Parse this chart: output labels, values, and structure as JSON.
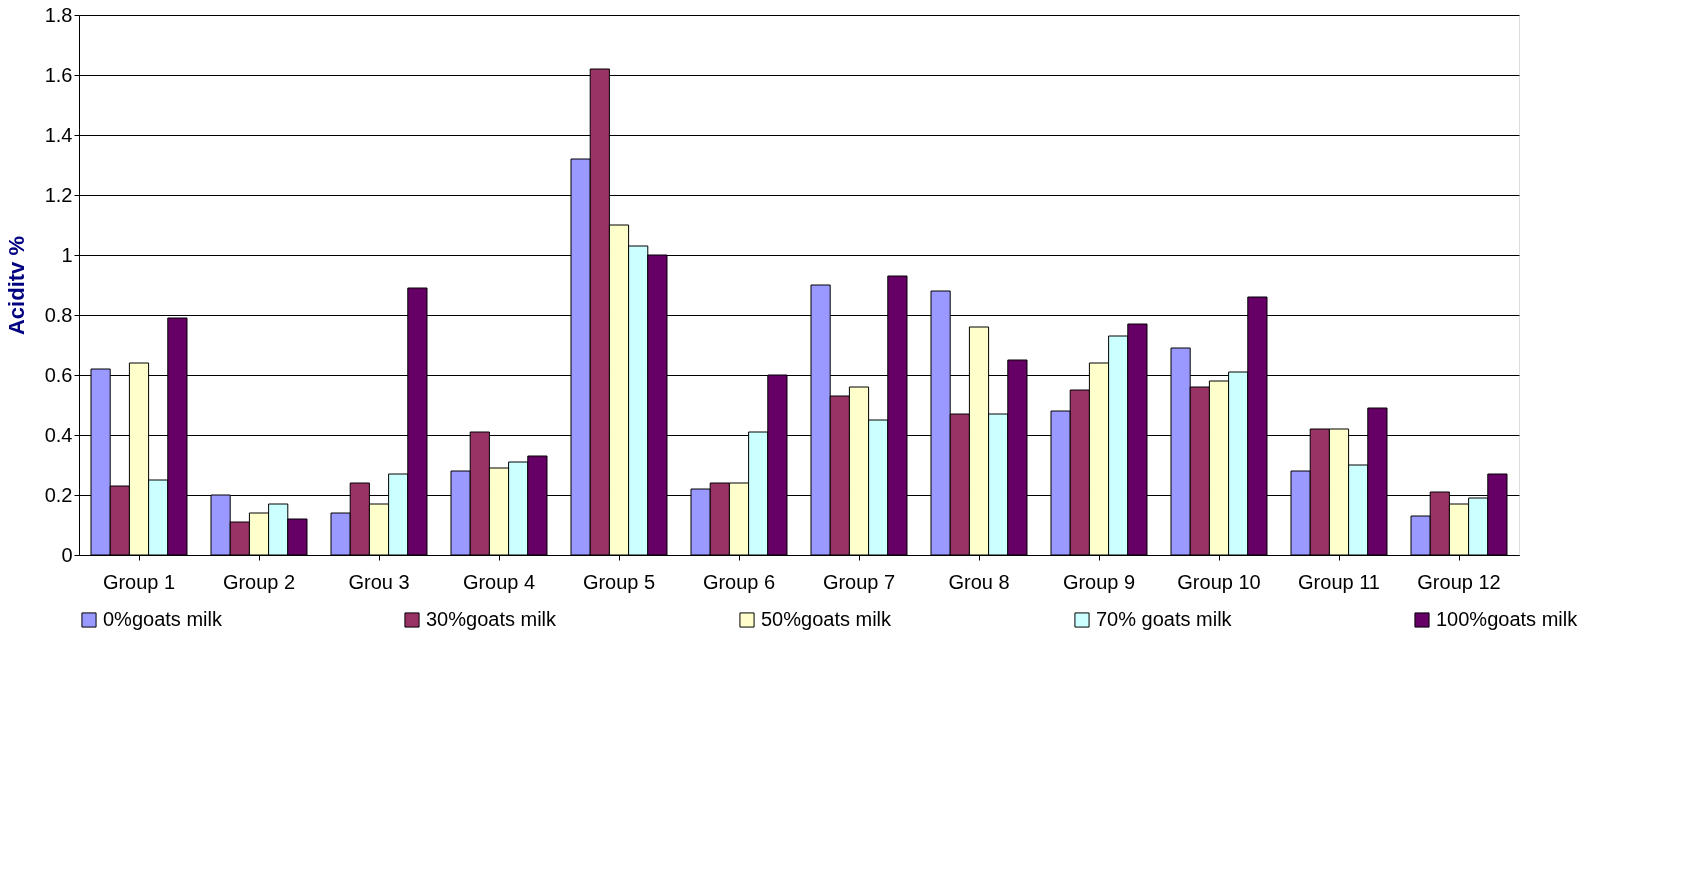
{
  "chart_data": {
    "type": "bar",
    "ylabel": "Aciditv %",
    "categories": [
      "Group 1",
      "Group 2",
      "Grou 3",
      "Group 4",
      "Group 5",
      "Group 6",
      "Group 7",
      "Grou 8",
      "Group 9",
      "Group 10",
      "Group 11",
      "Group 12"
    ],
    "series": [
      {
        "name": "0%goats milk",
        "color": "#9999ff",
        "values": [
          0.62,
          0.2,
          0.14,
          0.28,
          1.32,
          0.22,
          0.9,
          0.88,
          0.48,
          0.69,
          0.28,
          0.13
        ]
      },
      {
        "name": "30%goats milk",
        "color": "#993366",
        "values": [
          0.23,
          0.11,
          0.24,
          0.41,
          1.62,
          0.24,
          0.53,
          0.47,
          0.55,
          0.56,
          0.42,
          0.21
        ]
      },
      {
        "name": "50%goats milk",
        "color": "#ffffcc",
        "values": [
          0.64,
          0.14,
          0.17,
          0.29,
          1.1,
          0.24,
          0.56,
          0.76,
          0.64,
          0.58,
          0.42,
          0.17
        ]
      },
      {
        "name": "70% goats milk",
        "color": "#ccffff",
        "values": [
          0.25,
          0.17,
          0.27,
          0.31,
          1.03,
          0.41,
          0.45,
          0.47,
          0.73,
          0.61,
          0.3,
          0.19
        ]
      },
      {
        "name": "100%goats milk",
        "color": "#660066",
        "values": [
          0.79,
          0.12,
          0.89,
          0.33,
          1.0,
          0.6,
          0.93,
          0.65,
          0.77,
          0.86,
          0.49,
          0.27
        ]
      }
    ],
    "ylim": [
      0,
      1.8
    ],
    "yticks": [
      0,
      0.2,
      0.4,
      0.6,
      0.8,
      1,
      1.2,
      1.4,
      1.6,
      1.8
    ],
    "grid": "y",
    "legend": "bottom"
  }
}
